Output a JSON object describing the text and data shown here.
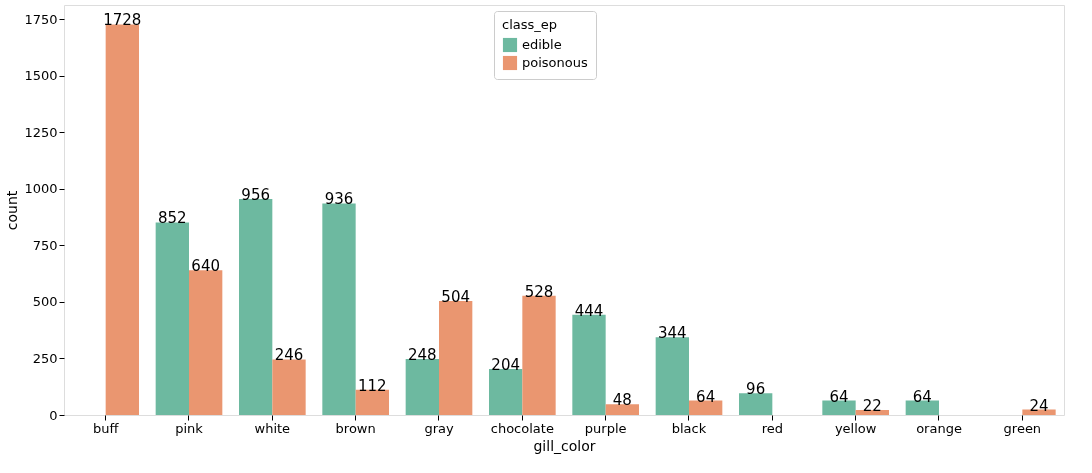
{
  "chart_data": {
    "type": "bar",
    "xlabel": "gill_color",
    "ylabel": "count",
    "legend_title": "class_ep",
    "legend": "top",
    "categories": [
      "buff",
      "pink",
      "white",
      "brown",
      "gray",
      "chocolate",
      "purple",
      "black",
      "red",
      "yellow",
      "orange",
      "green"
    ],
    "series": [
      {
        "name": "edible",
        "color": "#6db9a0",
        "values": [
          null,
          852,
          956,
          936,
          248,
          204,
          444,
          344,
          96,
          64,
          64,
          null
        ]
      },
      {
        "name": "poisonous",
        "color": "#ea9670",
        "values": [
          1728,
          640,
          246,
          112,
          504,
          528,
          48,
          64,
          null,
          22,
          null,
          24
        ]
      }
    ],
    "ylim": [
      0,
      1814
    ],
    "yticks": [
      0,
      250,
      500,
      750,
      1000,
      1250,
      1500,
      1750
    ],
    "grid": false,
    "data_labels": true
  }
}
